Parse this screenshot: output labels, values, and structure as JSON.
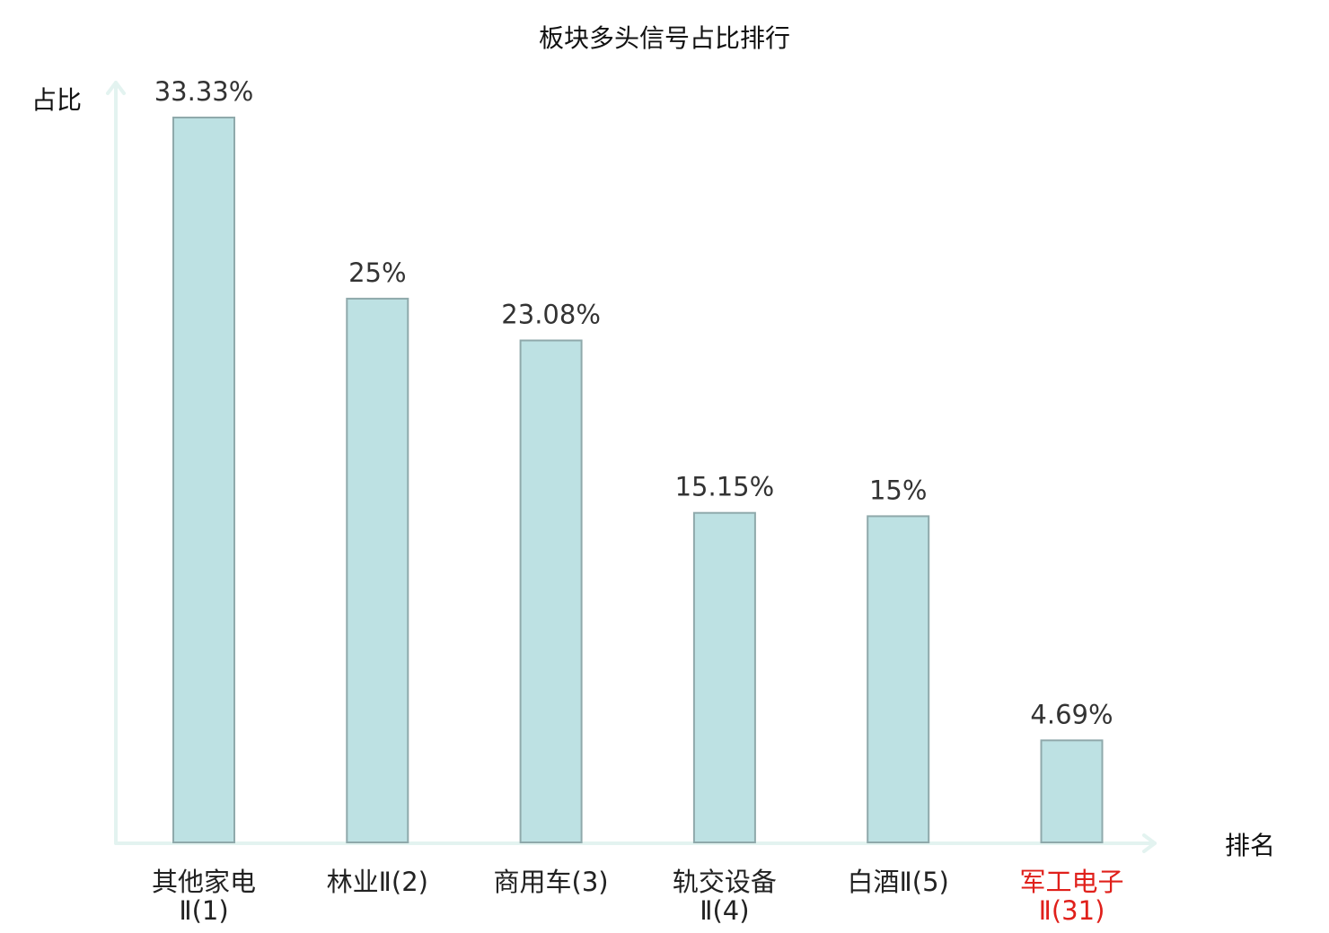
{
  "chart_data": {
    "type": "bar",
    "title": "板块多头信号占比排行",
    "ylabel": "占比",
    "xlabel": "排名",
    "ylim": [
      0,
      35
    ],
    "grid": false,
    "legend": "none",
    "categories": [
      {
        "line1": "其他家电",
        "line2": "Ⅱ(1)",
        "highlight": false
      },
      {
        "line1": "林业Ⅱ(2)",
        "line2": "",
        "highlight": false
      },
      {
        "line1": "商用车(3)",
        "line2": "",
        "highlight": false
      },
      {
        "line1": "轨交设备",
        "line2": "Ⅱ(4)",
        "highlight": false
      },
      {
        "line1": "白酒Ⅱ(5)",
        "line2": "",
        "highlight": false
      },
      {
        "line1": "军工电子",
        "line2": "Ⅱ(31)",
        "highlight": true
      }
    ],
    "values": [
      33.33,
      25,
      23.08,
      15.15,
      15,
      4.69
    ],
    "value_labels": [
      "33.33%",
      "25%",
      "23.08%",
      "15.15%",
      "15%",
      "4.69%"
    ],
    "colors": {
      "bar_fill": "#bde1e3",
      "bar_stroke": "#8fa9ab",
      "axis": "#e3f3f0",
      "label_default": "#222222",
      "label_highlight": "#e0201b"
    }
  }
}
